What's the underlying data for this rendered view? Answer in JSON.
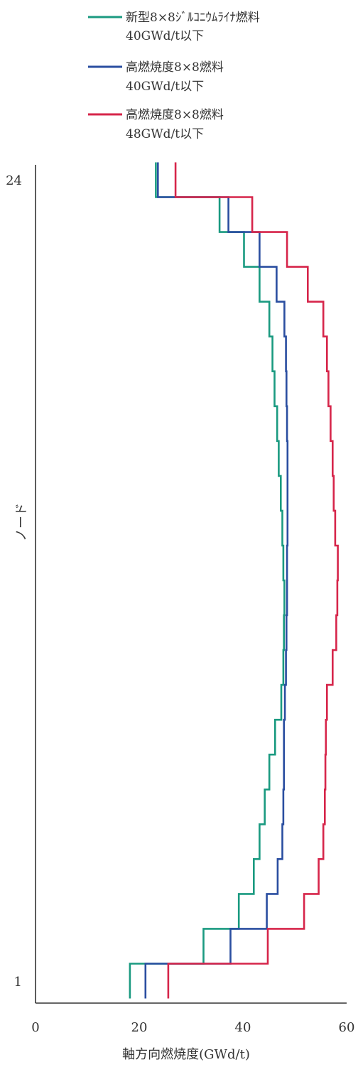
{
  "chart_data": {
    "type": "line",
    "title": "",
    "xlabel": "軸方向燃焼度(GWd/t)",
    "ylabel": "ノード",
    "xlim": [
      0,
      60
    ],
    "ylim": [
      1,
      24
    ],
    "x_ticks": [
      "0",
      "20",
      "40",
      "60"
    ],
    "y_ticks": [
      "1",
      "24"
    ],
    "grid": false,
    "legend_position": "top",
    "nodes": [
      1,
      2,
      3,
      4,
      5,
      6,
      7,
      8,
      9,
      10,
      11,
      12,
      13,
      14,
      15,
      16,
      17,
      18,
      19,
      20,
      21,
      22,
      23,
      24
    ],
    "series": [
      {
        "name": "新型8×8ｼﾞﾙｺﾆｳﾑﾗｲﾅ燃料",
        "name_line2": "40GWd/t以下",
        "color": "#1a9a80",
        "values": [
          18.2,
          32.4,
          39.2,
          42.1,
          43.2,
          44.2,
          45.1,
          46.2,
          47.4,
          47.8,
          47.9,
          48.0,
          47.8,
          47.6,
          47.3,
          46.9,
          46.6,
          46.1,
          45.7,
          45.1,
          43.2,
          40.2,
          35.5,
          23.2
        ]
      },
      {
        "name": "高燃焼度8×8燃料",
        "name_line2": "40GWd/t以下",
        "color": "#2a4ea0",
        "values": [
          21.2,
          37.6,
          44.6,
          46.7,
          47.6,
          47.8,
          47.9,
          47.9,
          48.1,
          48.3,
          48.4,
          48.5,
          48.5,
          48.6,
          48.6,
          48.6,
          48.5,
          48.4,
          48.3,
          48.0,
          46.5,
          43.2,
          37.2,
          23.6
        ]
      },
      {
        "name": "高燃焼度8×8燃料",
        "name_line2": "48GWd/t以下",
        "color": "#d6254a",
        "values": [
          25.6,
          44.8,
          51.8,
          54.6,
          55.5,
          55.8,
          55.9,
          56.0,
          56.2,
          57.3,
          58.0,
          58.2,
          58.3,
          57.8,
          57.5,
          57.3,
          56.9,
          56.5,
          56.2,
          55.5,
          52.5,
          48.5,
          41.8,
          27.0
        ]
      }
    ]
  }
}
